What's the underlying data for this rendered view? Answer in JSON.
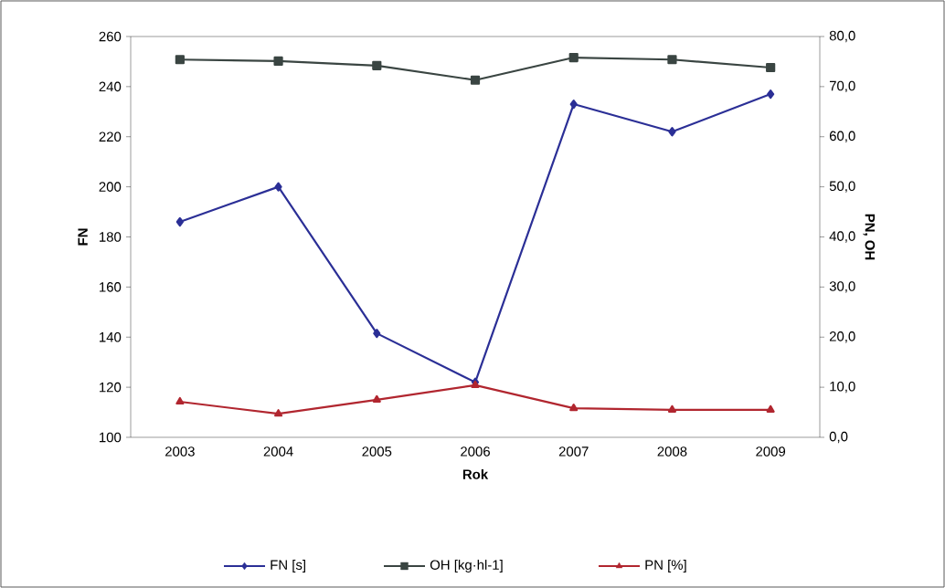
{
  "chart_data": {
    "type": "line",
    "xlabel": "Rok",
    "ylabel": "FN",
    "y2label": "PN, OH",
    "categories": [
      "2003",
      "2004",
      "2005",
      "2006",
      "2007",
      "2008",
      "2009"
    ],
    "series": [
      {
        "name": "FN [s]",
        "color": "#2b2f96",
        "marker": "diamond",
        "values": [
          186,
          200,
          141.5,
          122,
          233,
          222,
          237
        ]
      },
      {
        "name": "OH [kg·hl-1]",
        "color": "#3a4542",
        "marker": "square",
        "axis": "y2",
        "values": [
          75.4,
          75.1,
          74.2,
          71.3,
          75.8,
          75.4,
          73.8
        ]
      },
      {
        "name": "PN [%]",
        "color": "#b1262f",
        "marker": "triangle",
        "axis": "y2",
        "values": [
          7.1,
          4.7,
          7.5,
          10.4,
          5.8,
          5.5,
          5.5
        ]
      }
    ],
    "ylim": [
      100,
      260
    ],
    "yticks": [
      100,
      120,
      140,
      160,
      180,
      200,
      220,
      240,
      260
    ],
    "y2lim": [
      0,
      80
    ],
    "y2ticks": [
      {
        "value": 0,
        "label": "0,0"
      },
      {
        "value": 10,
        "label": "10,0"
      },
      {
        "value": 20,
        "label": "20,0"
      },
      {
        "value": 30,
        "label": "30,0"
      },
      {
        "value": 40,
        "label": "40,0"
      },
      {
        "value": 50,
        "label": "50,0"
      },
      {
        "value": 60,
        "label": "60,0"
      },
      {
        "value": 70,
        "label": "70,0"
      },
      {
        "value": 80,
        "label": "80,0"
      }
    ],
    "legend": "bottom",
    "line_style": "solid"
  }
}
